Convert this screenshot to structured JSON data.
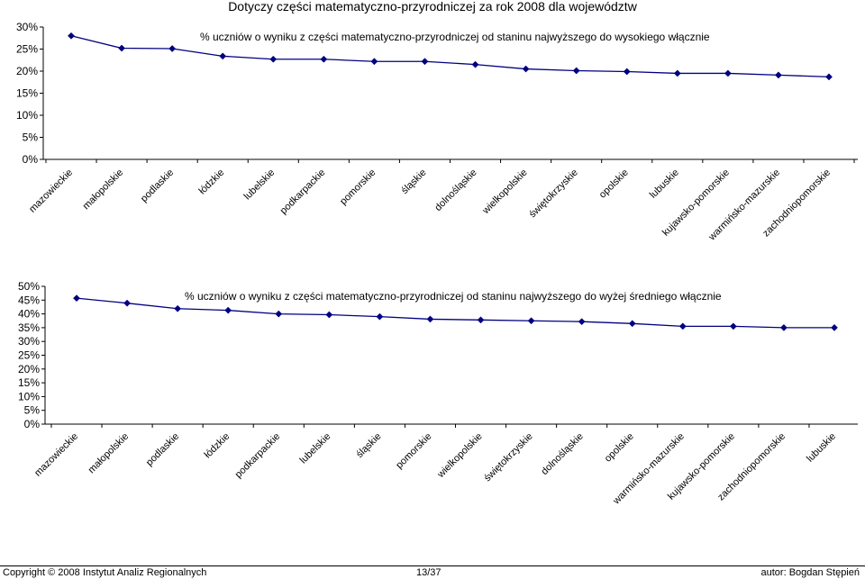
{
  "header": {
    "title": "Dotyczy części matematyczno-przyrodniczej za rok 2008 dla województw"
  },
  "chart_data": [
    {
      "type": "line",
      "title": "% uczniów o wyniku z części matematyczno-przyrodniczej od staninu najwyższego do wysokiego włącznie",
      "categories": [
        "mazowieckie",
        "małopolskie",
        "podlaskie",
        "łódzkie",
        "lubelskie",
        "podkarpackie",
        "pomorskie",
        "śląskie",
        "dolnośląskie",
        "wielkopolskie",
        "świętokrzyskie",
        "opolskie",
        "lubuskie",
        "kujawsko-pomorskie",
        "warmińsko-mazurskie",
        "zachodniopomorskie"
      ],
      "values": [
        0.28,
        0.252,
        0.251,
        0.234,
        0.227,
        0.227,
        0.222,
        0.222,
        0.215,
        0.205,
        0.201,
        0.199,
        0.195,
        0.195,
        0.191,
        0.187
      ],
      "ylim": [
        0,
        0.3
      ],
      "yticks": [
        "0%",
        "5%",
        "10%",
        "15%",
        "20%",
        "25%",
        "30%"
      ],
      "grid": false,
      "color": "#000080"
    },
    {
      "type": "line",
      "title": "% uczniów o wyniku z części matematyczno-przyrodniczej od staninu najwyższego do wyżej średniego włącznie",
      "categories": [
        "mazowieckie",
        "małopolskie",
        "podlaskie",
        "łódzkie",
        "podkarpackie",
        "lubelskie",
        "śląskie",
        "pomorskie",
        "wielkopolskie",
        "świętokrzyskie",
        "dolnośląskie",
        "opolskie",
        "warmińsko-mazurskie",
        "kujawsko-pomorskie",
        "zachodniopomorskie",
        "lubuskie"
      ],
      "values": [
        0.457,
        0.439,
        0.419,
        0.413,
        0.4,
        0.397,
        0.39,
        0.381,
        0.378,
        0.375,
        0.372,
        0.365,
        0.355,
        0.355,
        0.35,
        0.35
      ],
      "ylim": [
        0,
        0.5
      ],
      "yticks": [
        "0%",
        "5%",
        "10%",
        "15%",
        "20%",
        "25%",
        "30%",
        "35%",
        "40%",
        "45%",
        "50%"
      ],
      "grid": false,
      "color": "#000080"
    }
  ],
  "footer": {
    "left": "Copyright © 2008 Instytut Analiz Regionalnych",
    "center": "13/37",
    "right": "autor: Bogdan Stępień"
  }
}
